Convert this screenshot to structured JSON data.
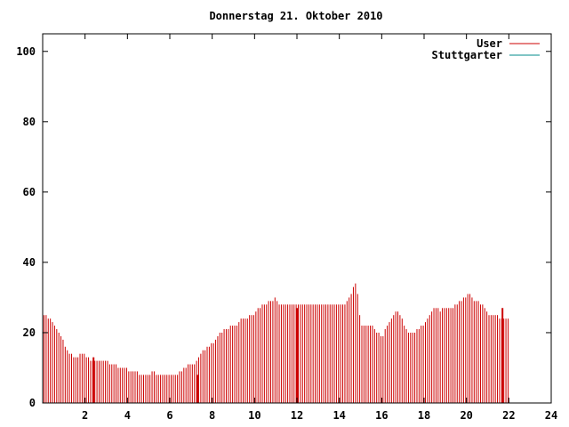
{
  "chart_data": {
    "type": "bar",
    "title": "Donnerstag 21. Oktober 2010",
    "xlabel": "",
    "ylabel": "",
    "xlim": [
      0,
      24
    ],
    "ylim": [
      0,
      105
    ],
    "x_ticks": [
      2,
      4,
      6,
      8,
      10,
      12,
      14,
      16,
      18,
      20,
      22,
      24
    ],
    "y_ticks": [
      0,
      20,
      40,
      60,
      80,
      100
    ],
    "grid": false,
    "legend_position": "top-right",
    "series": [
      {
        "name": "User",
        "color": "#cc0000",
        "interval_hours": 0.1,
        "values": [
          25,
          25,
          24,
          24,
          23,
          22,
          21,
          20,
          19,
          18,
          16,
          15,
          14,
          14,
          13,
          13,
          13,
          14,
          14,
          14,
          13,
          13,
          12,
          12,
          12,
          12,
          12,
          12,
          12,
          12,
          12,
          11,
          11,
          11,
          11,
          10,
          10,
          10,
          10,
          10,
          9,
          9,
          9,
          9,
          9,
          8,
          8,
          8,
          8,
          8,
          8,
          9,
          9,
          8,
          8,
          8,
          8,
          8,
          8,
          8,
          8,
          8,
          8,
          8,
          9,
          9,
          10,
          10,
          11,
          11,
          11,
          11,
          12,
          13,
          14,
          15,
          15,
          16,
          16,
          17,
          17,
          18,
          19,
          20,
          20,
          21,
          21,
          21,
          22,
          22,
          22,
          22,
          23,
          24,
          24,
          24,
          24,
          25,
          25,
          25,
          26,
          27,
          27,
          28,
          28,
          28,
          29,
          29,
          29,
          30,
          29,
          28,
          28,
          28,
          28,
          28,
          28,
          28,
          28,
          28,
          28,
          28,
          28,
          28,
          28,
          28,
          28,
          28,
          28,
          28,
          28,
          28,
          28,
          28,
          28,
          28,
          28,
          28,
          28,
          28,
          28,
          28,
          28,
          29,
          30,
          31,
          33,
          34,
          31,
          25,
          22,
          22,
          22,
          22,
          22,
          22,
          21,
          20,
          20,
          19,
          19,
          21,
          22,
          23,
          24,
          25,
          26,
          26,
          25,
          24,
          22,
          21,
          20,
          20,
          20,
          20,
          21,
          21,
          22,
          22,
          23,
          24,
          25,
          26,
          27,
          27,
          27,
          26,
          27,
          27,
          27,
          27,
          27,
          27,
          28,
          28,
          29,
          29,
          30,
          30,
          31,
          31,
          30,
          29,
          29,
          29,
          28,
          28,
          27,
          26,
          25,
          25,
          25,
          25,
          25,
          24,
          24,
          24,
          24,
          24
        ],
        "spikes": [
          {
            "x": 2.4,
            "value": 13
          },
          {
            "x": 7.3,
            "value": 8
          },
          {
            "x": 12.0,
            "value": 27
          },
          {
            "x": 21.7,
            "value": 27
          }
        ]
      },
      {
        "name": "Stuttgarter",
        "color": "#008b8b",
        "values": []
      }
    ]
  }
}
